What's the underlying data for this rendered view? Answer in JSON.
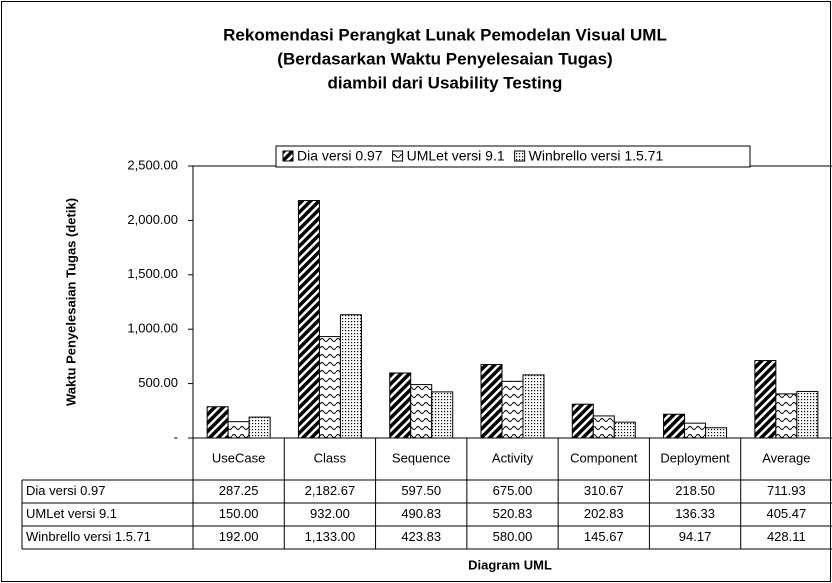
{
  "chart_data": {
    "type": "bar",
    "title": [
      "Rekomendasi Perangkat Lunak Pemodelan Visual UML",
      "(Berdasarkan Waktu Penyelesaian Tugas)",
      "diambil dari Usability Testing"
    ],
    "x_label": "Diagram UML",
    "y_label": "Waktu Penyelesaian Tugas (detik)",
    "categories": [
      "UseCase",
      "Class",
      "Sequence",
      "Activity",
      "Component",
      "Deployment",
      "Average"
    ],
    "series": [
      {
        "name": "Dia versi 0.97",
        "pattern": "diagonal",
        "values": [
          287.25,
          2182.67,
          597.5,
          675,
          310.67,
          218.5,
          711.93
        ],
        "value_labels": [
          "287.25",
          "2,182.67",
          "597.50",
          "675.00",
          "310.67",
          "218.50",
          "711.93"
        ]
      },
      {
        "name": "UMLet versi 9.1",
        "pattern": "wave",
        "values": [
          150,
          932,
          490.83,
          520.83,
          202.83,
          136.33,
          405.47
        ],
        "value_labels": [
          "150.00",
          "932.00",
          "490.83",
          "520.83",
          "202.83",
          "136.33",
          "405.47"
        ]
      },
      {
        "name": "Winbrello versi 1.5.71",
        "pattern": "dots",
        "values": [
          192,
          1133,
          423.83,
          580,
          145.67,
          94.17,
          428.11
        ],
        "value_labels": [
          "192.00",
          "1,133.00",
          "423.83",
          "580.00",
          "145.67",
          "94.17",
          "428.11"
        ]
      }
    ],
    "ylim": [
      0,
      2500
    ],
    "yticks": [
      {
        "value": 0,
        "label": "-"
      },
      {
        "value": 500,
        "label": "500.00"
      },
      {
        "value": 1000,
        "label": "1,000.00"
      },
      {
        "value": 1500,
        "label": "1,500.00"
      },
      {
        "value": 2000,
        "label": "2,000.00"
      },
      {
        "value": 2500,
        "label": "2,500.00"
      }
    ],
    "grid": false,
    "legend": "top"
  }
}
